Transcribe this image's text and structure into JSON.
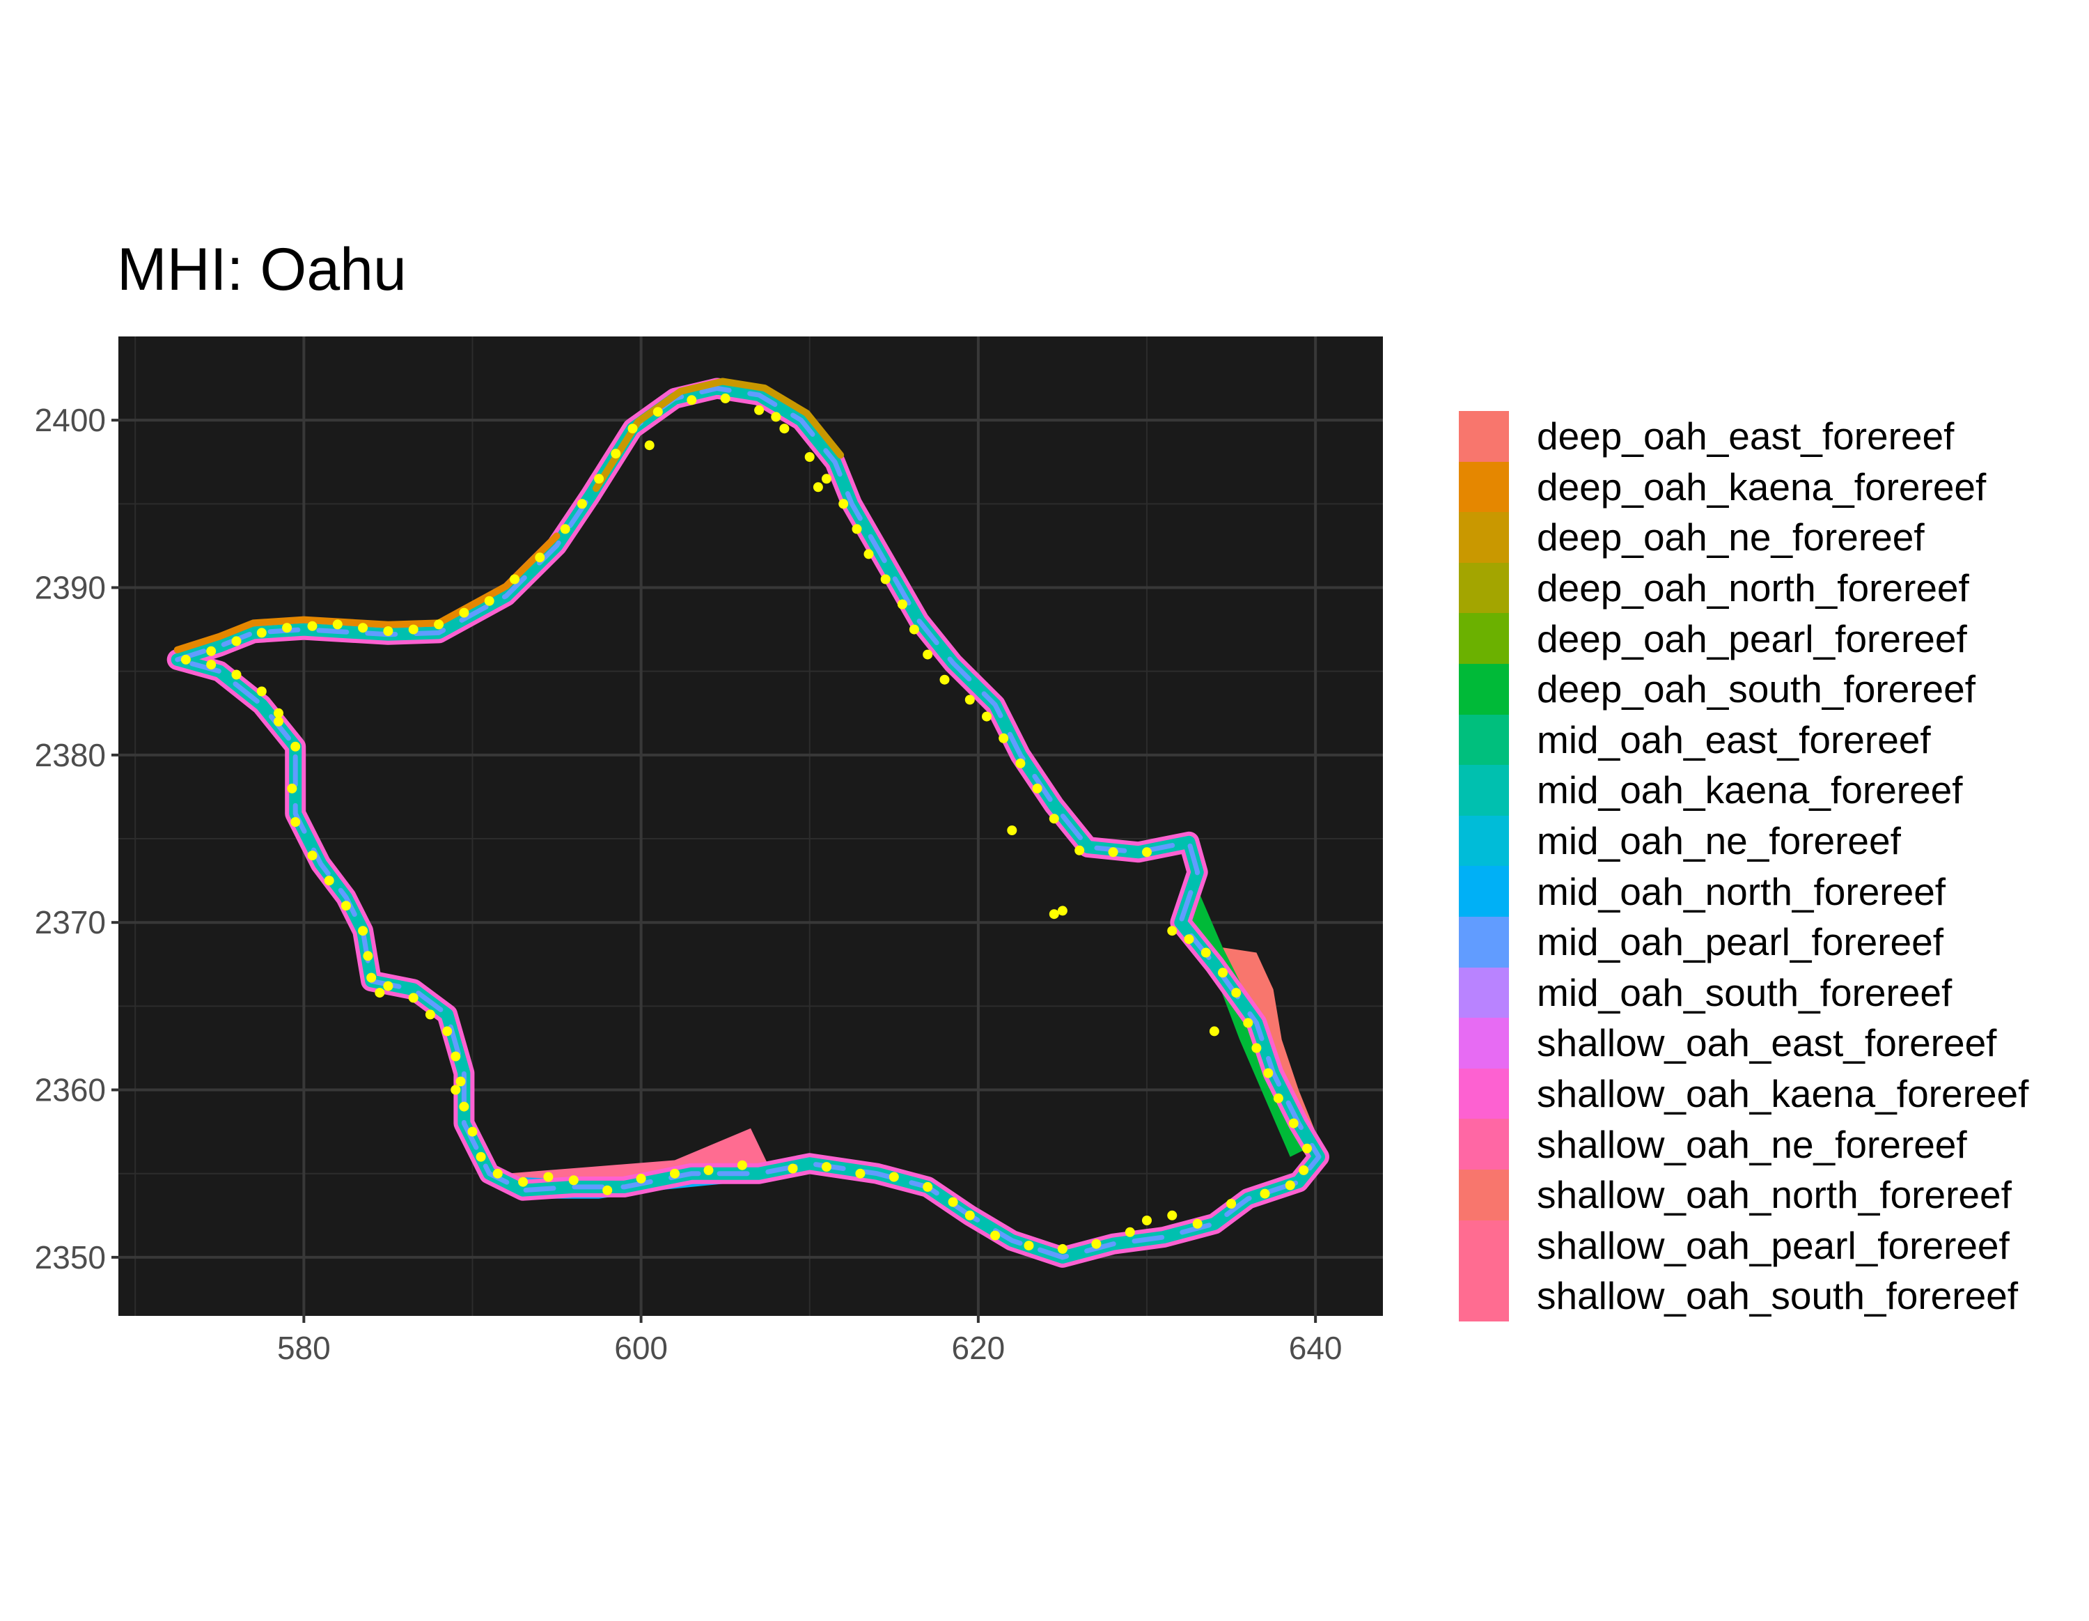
{
  "title": "MHI: Oahu",
  "chart_data": {
    "type": "map",
    "title": "MHI: Oahu",
    "xlabel": "",
    "ylabel": "",
    "xlim": [
      569,
      644
    ],
    "ylim": [
      2346.5,
      2405
    ],
    "x_ticks": [
      "580",
      "600",
      "620",
      "640"
    ],
    "x_tick_values": [
      580,
      600,
      620,
      640
    ],
    "y_ticks": [
      "2350",
      "2360",
      "2370",
      "2380",
      "2390",
      "2400"
    ],
    "y_tick_values": [
      2350,
      2360,
      2370,
      2380,
      2390,
      2400
    ],
    "grid": true,
    "panel_background": "#1a1a1a",
    "grid_color": "#333333",
    "point_color": "#ffff00",
    "legend_position": "right",
    "legend": [
      {
        "label": "deep_oah_east_forereef",
        "color": "#F8766D"
      },
      {
        "label": "deep_oah_kaena_forereef",
        "color": "#E58700"
      },
      {
        "label": "deep_oah_ne_forereef",
        "color": "#C99800"
      },
      {
        "label": "deep_oah_north_forereef",
        "color": "#A3A500"
      },
      {
        "label": "deep_oah_pearl_forereef",
        "color": "#6BB100"
      },
      {
        "label": "deep_oah_south_forereef",
        "color": "#00BA38"
      },
      {
        "label": "mid_oah_east_forereef",
        "color": "#00BF7D"
      },
      {
        "label": "mid_oah_kaena_forereef",
        "color": "#00C0AF"
      },
      {
        "label": "mid_oah_ne_forereef",
        "color": "#00BCD8"
      },
      {
        "label": "mid_oah_north_forereef",
        "color": "#00B0F6"
      },
      {
        "label": "mid_oah_pearl_forereef",
        "color": "#619CFF"
      },
      {
        "label": "mid_oah_south_forereef",
        "color": "#B983FF"
      },
      {
        "label": "shallow_oah_east_forereef",
        "color": "#E76BF3"
      },
      {
        "label": "shallow_oah_kaena_forereef",
        "color": "#FD61D1"
      },
      {
        "label": "shallow_oah_ne_forereef",
        "color": "#FF67A4"
      },
      {
        "label": "shallow_oah_north_forereef",
        "color": "#F8766D"
      },
      {
        "label": "shallow_oah_pearl_forereef",
        "color": "#FF6C91"
      },
      {
        "label": "shallow_oah_south_forereef",
        "color": "#FF6C91"
      }
    ],
    "outline": [
      [
        572.5,
        2385.7
      ],
      [
        575.0,
        2386.5
      ],
      [
        577.0,
        2387.3
      ],
      [
        580.0,
        2387.5
      ],
      [
        585.0,
        2387.2
      ],
      [
        588.0,
        2387.3
      ],
      [
        592.0,
        2389.5
      ],
      [
        595.0,
        2392.5
      ],
      [
        597.0,
        2395.5
      ],
      [
        599.5,
        2399.5
      ],
      [
        602.0,
        2401.3
      ],
      [
        604.5,
        2401.9
      ],
      [
        607.0,
        2401.5
      ],
      [
        609.5,
        2400.0
      ],
      [
        611.5,
        2397.5
      ],
      [
        612.5,
        2395.0
      ],
      [
        614.5,
        2391.5
      ],
      [
        616.5,
        2388.0
      ],
      [
        618.5,
        2385.5
      ],
      [
        621.0,
        2383.0
      ],
      [
        622.5,
        2380.0
      ],
      [
        624.5,
        2377.0
      ],
      [
        626.5,
        2374.5
      ],
      [
        629.5,
        2374.2
      ],
      [
        632.5,
        2374.8
      ],
      [
        633.0,
        2373.0
      ],
      [
        632.0,
        2370.0
      ],
      [
        634.0,
        2367.5
      ],
      [
        636.5,
        2364.0
      ],
      [
        637.5,
        2361.0
      ],
      [
        639.0,
        2358.0
      ],
      [
        640.2,
        2356.0
      ],
      [
        639.0,
        2354.5
      ],
      [
        636.0,
        2353.5
      ],
      [
        634.0,
        2352.0
      ],
      [
        631.0,
        2351.2
      ],
      [
        628.0,
        2350.8
      ],
      [
        625.0,
        2350.0
      ],
      [
        622.0,
        2351.0
      ],
      [
        619.5,
        2352.5
      ],
      [
        617.0,
        2354.2
      ],
      [
        614.0,
        2355.0
      ],
      [
        610.0,
        2355.6
      ],
      [
        607.0,
        2355.0
      ],
      [
        603.0,
        2355.0
      ],
      [
        599.0,
        2354.2
      ],
      [
        596.0,
        2354.2
      ],
      [
        593.0,
        2354.0
      ],
      [
        591.0,
        2355.0
      ],
      [
        589.5,
        2358.0
      ],
      [
        589.5,
        2361.0
      ],
      [
        588.5,
        2364.5
      ],
      [
        586.5,
        2366.0
      ],
      [
        584.0,
        2366.5
      ],
      [
        583.5,
        2369.5
      ],
      [
        582.5,
        2371.5
      ],
      [
        581.0,
        2373.5
      ],
      [
        579.5,
        2376.5
      ],
      [
        579.5,
        2380.5
      ],
      [
        577.5,
        2383.0
      ],
      [
        575.0,
        2385.0
      ],
      [
        572.5,
        2385.7
      ]
    ],
    "south_shallow_band": [
      [
        592.0,
        2355.0
      ],
      [
        597.0,
        2355.4
      ],
      [
        602.0,
        2355.8
      ],
      [
        606.5,
        2357.7
      ],
      [
        607.5,
        2355.6
      ],
      [
        602.0,
        2354.5
      ],
      [
        597.0,
        2354.0
      ],
      [
        592.5,
        2354.2
      ]
    ],
    "east_shallow_band": [
      [
        634.5,
        2368.5
      ],
      [
        636.5,
        2368.2
      ],
      [
        637.5,
        2366.0
      ],
      [
        638.0,
        2363.0
      ],
      [
        639.0,
        2360.0
      ],
      [
        640.0,
        2357.5
      ],
      [
        639.0,
        2357.0
      ],
      [
        637.5,
        2360.0
      ],
      [
        636.5,
        2363.5
      ],
      [
        635.0,
        2366.5
      ]
    ],
    "south_mid_band": [
      [
        592.5,
        2354.8
      ],
      [
        597.0,
        2354.6
      ],
      [
        601.5,
        2355.0
      ],
      [
        606.5,
        2355.5
      ],
      [
        606.0,
        2354.5
      ],
      [
        601.0,
        2354.0
      ],
      [
        597.5,
        2353.5
      ],
      [
        593.0,
        2353.5
      ]
    ],
    "east_deep_band": [
      [
        633.0,
        2372.0
      ],
      [
        634.5,
        2368.5
      ],
      [
        636.0,
        2365.5
      ],
      [
        637.5,
        2362.0
      ],
      [
        638.8,
        2358.5
      ],
      [
        639.5,
        2356.5
      ],
      [
        638.5,
        2356.0
      ],
      [
        637.0,
        2359.5
      ],
      [
        635.5,
        2363.0
      ],
      [
        634.0,
        2367.0
      ],
      [
        632.5,
        2370.0
      ]
    ],
    "survey_points": [
      [
        573,
        2385.7
      ],
      [
        574.5,
        2385.4
      ],
      [
        576,
        2384.8
      ],
      [
        577.5,
        2383.8
      ],
      [
        578.5,
        2382.5
      ],
      [
        579.5,
        2380.5
      ],
      [
        579.3,
        2378.0
      ],
      [
        579.5,
        2376.0
      ],
      [
        580.5,
        2374.0
      ],
      [
        581.5,
        2372.5
      ],
      [
        582.5,
        2371.0
      ],
      [
        583.5,
        2369.5
      ],
      [
        583.8,
        2368.0
      ],
      [
        584.0,
        2366.7
      ],
      [
        585.0,
        2366.2
      ],
      [
        586.5,
        2365.5
      ],
      [
        587.5,
        2364.5
      ],
      [
        588.5,
        2363.5
      ],
      [
        589.0,
        2362.0
      ],
      [
        589.3,
        2360.5
      ],
      [
        589.5,
        2359.0
      ],
      [
        590.0,
        2357.5
      ],
      [
        590.5,
        2356.0
      ],
      [
        591.5,
        2355.0
      ],
      [
        593.0,
        2354.5
      ],
      [
        594.5,
        2354.8
      ],
      [
        596.0,
        2354.6
      ],
      [
        598.0,
        2354.0
      ],
      [
        600.0,
        2354.7
      ],
      [
        602.0,
        2355.0
      ],
      [
        604.0,
        2355.2
      ],
      [
        606.0,
        2355.5
      ],
      [
        609.0,
        2355.3
      ],
      [
        611.0,
        2355.4
      ],
      [
        613.0,
        2355.0
      ],
      [
        615.0,
        2354.8
      ],
      [
        617.0,
        2354.2
      ],
      [
        618.5,
        2353.3
      ],
      [
        619.5,
        2352.5
      ],
      [
        621.0,
        2351.3
      ],
      [
        623.0,
        2350.7
      ],
      [
        625.0,
        2350.5
      ],
      [
        627.0,
        2350.8
      ],
      [
        629.0,
        2351.5
      ],
      [
        630.0,
        2352.2
      ],
      [
        631.5,
        2352.5
      ],
      [
        633.0,
        2352.0
      ],
      [
        635.0,
        2353.2
      ],
      [
        637.0,
        2353.8
      ],
      [
        638.5,
        2354.3
      ],
      [
        639.3,
        2355.2
      ],
      [
        639.5,
        2356.5
      ],
      [
        638.7,
        2358.0
      ],
      [
        637.8,
        2359.5
      ],
      [
        637.2,
        2361.0
      ],
      [
        636.5,
        2362.5
      ],
      [
        636.0,
        2364.0
      ],
      [
        635.3,
        2365.8
      ],
      [
        634.5,
        2367.0
      ],
      [
        633.5,
        2368.2
      ],
      [
        632.5,
        2369.0
      ],
      [
        631.5,
        2369.5
      ],
      [
        634.0,
        2363.5
      ],
      [
        628.0,
        2374.2
      ],
      [
        630.0,
        2374.2
      ],
      [
        626.0,
        2374.3
      ],
      [
        624.5,
        2376.2
      ],
      [
        623.5,
        2378.0
      ],
      [
        622.5,
        2379.5
      ],
      [
        621.5,
        2381.0
      ],
      [
        620.5,
        2382.3
      ],
      [
        619.5,
        2383.3
      ],
      [
        618.0,
        2384.5
      ],
      [
        617.0,
        2386.0
      ],
      [
        616.2,
        2387.5
      ],
      [
        615.5,
        2389.0
      ],
      [
        614.5,
        2390.5
      ],
      [
        613.5,
        2392.0
      ],
      [
        612.8,
        2393.5
      ],
      [
        612.0,
        2395.0
      ],
      [
        611.0,
        2396.5
      ],
      [
        610.0,
        2397.8
      ],
      [
        608.5,
        2399.5
      ],
      [
        607.0,
        2400.6
      ],
      [
        605.0,
        2401.3
      ],
      [
        603.0,
        2401.2
      ],
      [
        601.0,
        2400.5
      ],
      [
        599.5,
        2399.5
      ],
      [
        598.5,
        2398.0
      ],
      [
        597.5,
        2396.5
      ],
      [
        596.5,
        2395.0
      ],
      [
        595.5,
        2393.5
      ],
      [
        594.0,
        2391.8
      ],
      [
        592.5,
        2390.5
      ],
      [
        591.0,
        2389.2
      ],
      [
        589.5,
        2388.5
      ],
      [
        588.0,
        2387.8
      ],
      [
        586.5,
        2387.5
      ],
      [
        585.0,
        2387.4
      ],
      [
        583.5,
        2387.6
      ],
      [
        582.0,
        2387.8
      ],
      [
        580.5,
        2387.7
      ],
      [
        579.0,
        2387.6
      ],
      [
        577.5,
        2387.3
      ],
      [
        576.0,
        2386.8
      ],
      [
        574.5,
        2386.2
      ],
      [
        622.0,
        2375.5
      ],
      [
        624.5,
        2370.5
      ],
      [
        625.0,
        2370.7
      ],
      [
        608.0,
        2400.2
      ],
      [
        610.5,
        2396.0
      ],
      [
        600.5,
        2398.5
      ],
      [
        584.5,
        2365.8
      ],
      [
        589.0,
        2360.0
      ],
      [
        578.5,
        2382.0
      ]
    ]
  }
}
